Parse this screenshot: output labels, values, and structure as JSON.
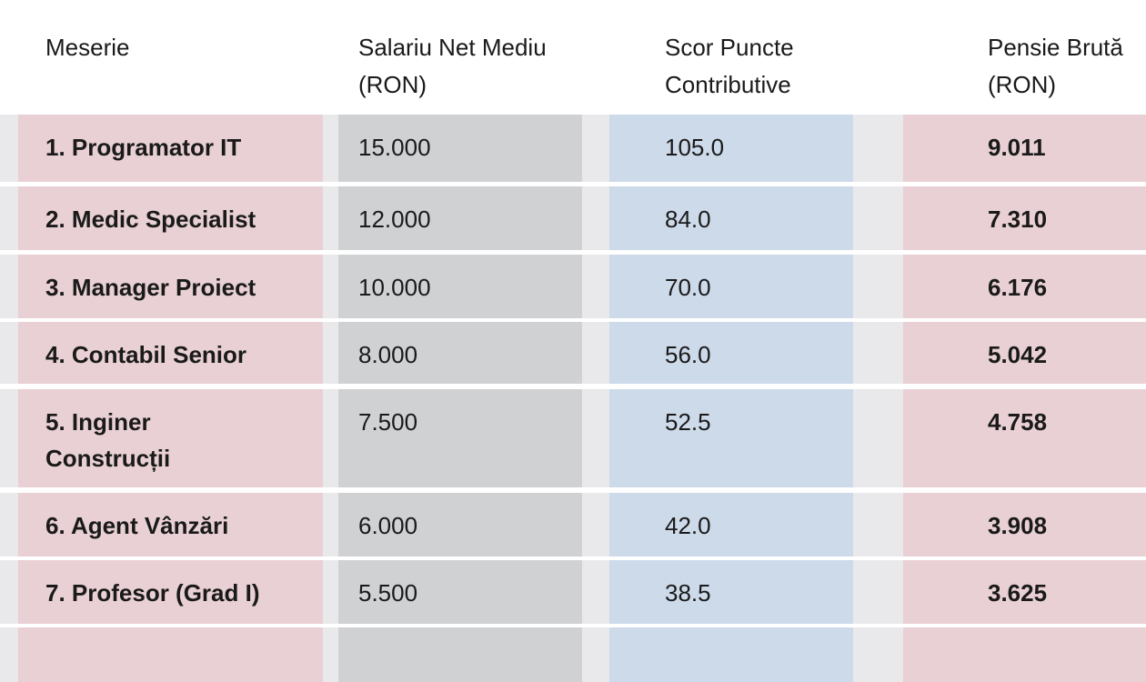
{
  "headers": [
    "Meserie",
    "Salariu Net Mediu (RON)",
    "Scor Puncte Contributive",
    "Pensie Brută (RON)"
  ],
  "header_lines": [
    [
      "Meserie"
    ],
    [
      "Salariu Net Mediu",
      "(RON)"
    ],
    [
      "Scor Puncte",
      "Contributive"
    ],
    [
      "Pensie Brută",
      "(RON)"
    ]
  ],
  "rows": [
    [
      "1. Programator IT",
      "15.000",
      "105.0",
      "9.011"
    ],
    [
      "2. Medic Specialist",
      "12.000",
      "84.0",
      "7.310"
    ],
    [
      "3. Manager Proiect",
      "10.000",
      "70.0",
      "6.176"
    ],
    [
      "4. Contabil Senior",
      "8.000",
      "56.0",
      "5.042"
    ],
    [
      "5. Inginer Construcții",
      "7.500",
      "52.5",
      "4.758"
    ],
    [
      "6. Agent Vânzări",
      "6.000",
      "42.0",
      "3.908"
    ],
    [
      "7. Profesor (Grad I)",
      "5.500",
      "38.5",
      "3.625"
    ]
  ],
  "colors": {
    "name_col": "#e9d0d4",
    "salary_col": "#d0d1d3",
    "score_col": "#cddaea",
    "pension_col": "#e9d0d4"
  }
}
